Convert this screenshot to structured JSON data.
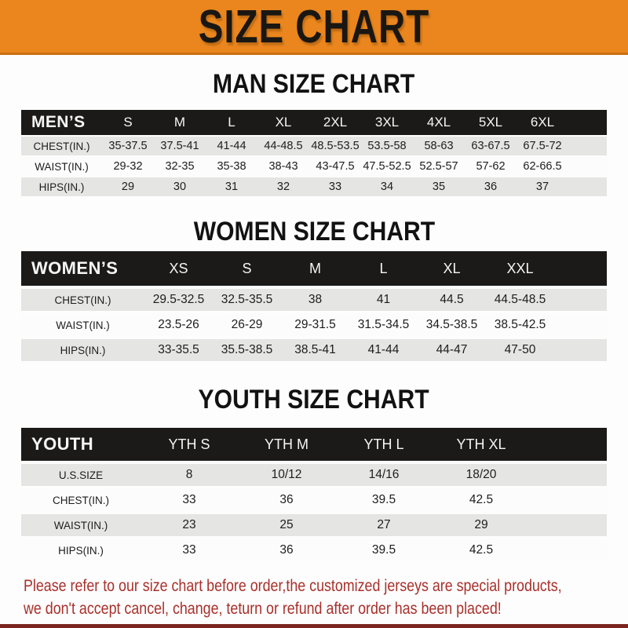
{
  "banner": {
    "title": "SIZE CHART",
    "bg_color": "#EA861D",
    "text_color": "#1A1713"
  },
  "chart_data": [
    {
      "type": "table",
      "title": "MAN SIZE CHART",
      "header_label": "MEN’S",
      "columns": [
        "S",
        "M",
        "L",
        "XL",
        "2XL",
        "3XL",
        "4XL",
        "5XL",
        "6XL"
      ],
      "rows": [
        {
          "label": "CHEST(IN.)",
          "values": [
            "35-37.5",
            "37.5-41",
            "41-44",
            "44-48.5",
            "48.5-53.5",
            "53.5-58",
            "58-63",
            "63-67.5",
            "67.5-72"
          ]
        },
        {
          "label": "WAIST(IN.)",
          "values": [
            "29-32",
            "32-35",
            "35-38",
            "38-43",
            "43-47.5",
            "47.5-52.5",
            "52.5-57",
            "57-62",
            "62-66.5"
          ]
        },
        {
          "label": "HIPS(IN.)",
          "values": [
            "29",
            "30",
            "31",
            "32",
            "33",
            "34",
            "35",
            "36",
            "37"
          ]
        }
      ]
    },
    {
      "type": "table",
      "title": "WOMEN SIZE CHART",
      "header_label": "WOMEN’S",
      "columns": [
        "XS",
        "S",
        "M",
        "L",
        "XL",
        "XXL"
      ],
      "rows": [
        {
          "label": "CHEST(IN.)",
          "values": [
            "29.5-32.5",
            "32.5-35.5",
            "38",
            "41",
            "44.5",
            "44.5-48.5"
          ]
        },
        {
          "label": "WAIST(IN.)",
          "values": [
            "23.5-26",
            "26-29",
            "29-31.5",
            "31.5-34.5",
            "34.5-38.5",
            "38.5-42.5"
          ]
        },
        {
          "label": "HIPS(IN.)",
          "values": [
            "33-35.5",
            "35.5-38.5",
            "38.5-41",
            "41-44",
            "44-47",
            "47-50"
          ]
        }
      ]
    },
    {
      "type": "table",
      "title": "YOUTH SIZE CHART",
      "header_label": "YOUTH",
      "columns": [
        "YTH S",
        "YTH M",
        "YTH L",
        "YTH XL"
      ],
      "rows": [
        {
          "label": "U.S.SIZE",
          "values": [
            "8",
            "10/12",
            "14/16",
            "18/20"
          ]
        },
        {
          "label": "CHEST(IN.)",
          "values": [
            "33",
            "36",
            "39.5",
            "42.5"
          ]
        },
        {
          "label": "WAIST(IN.)",
          "values": [
            "23",
            "25",
            "27",
            "29"
          ]
        },
        {
          "label": "HIPS(IN.)",
          "values": [
            "33",
            "36",
            "39.5",
            "42.5"
          ]
        }
      ]
    }
  ],
  "footer": {
    "line1": "Please refer to our size chart before order,the customized jerseys are special products,",
    "line2": "we don't accept cancel, change, teturn or refund after order has been placed!",
    "text_color": "#A8302B"
  },
  "colors": {
    "table_header_bg": "#1B1A19",
    "row_gray": "#E5E5E4",
    "row_white": "#FCFCFC",
    "bottom_strip": "#7B241E"
  }
}
